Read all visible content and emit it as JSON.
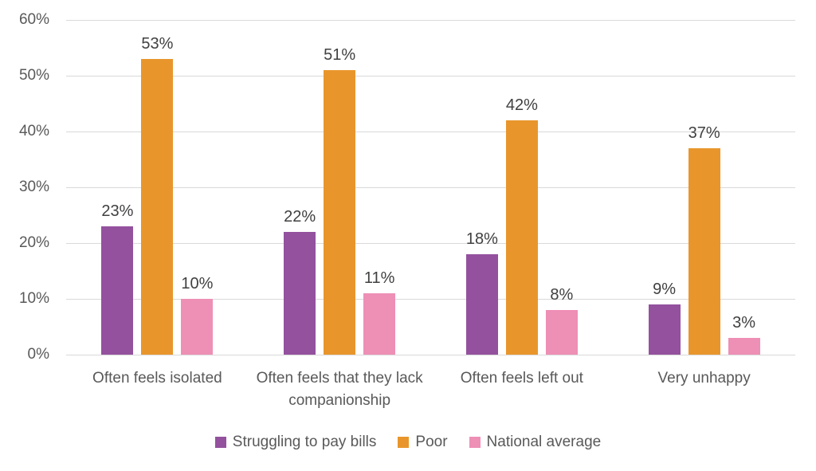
{
  "chart_data": {
    "type": "bar",
    "categories": [
      "Often feels isolated",
      "Often feels that they lack companionship",
      "Often feels left out",
      "Very unhappy"
    ],
    "series": [
      {
        "name": "Struggling to pay bills",
        "color": "#94519E",
        "values": [
          23,
          22,
          18,
          9
        ],
        "labels": [
          "23%",
          "22%",
          "18%",
          "9%"
        ]
      },
      {
        "name": "Poor",
        "color": "#E8962C",
        "values": [
          53,
          51,
          42,
          37
        ],
        "labels": [
          "53%",
          "51%",
          "42%",
          "37%"
        ]
      },
      {
        "name": "National average",
        "color": "#EE8FB6",
        "values": [
          10,
          11,
          8,
          3
        ],
        "labels": [
          "10%",
          "11%",
          "8%",
          "3%"
        ]
      }
    ],
    "title": "",
    "xlabel": "",
    "ylabel": "",
    "ylim": [
      0,
      60
    ],
    "ytick_values": [
      0,
      10,
      20,
      30,
      40,
      50,
      60
    ],
    "ytick_labels": [
      "0%",
      "10%",
      "20%",
      "30%",
      "40%",
      "50%",
      "60%"
    ],
    "grid": true,
    "legend_position": "bottom",
    "colors": {
      "axis_text": "#595959",
      "data_label_text": "#404040",
      "gridline": "#D9D9D9",
      "background": "#FFFFFF"
    }
  }
}
